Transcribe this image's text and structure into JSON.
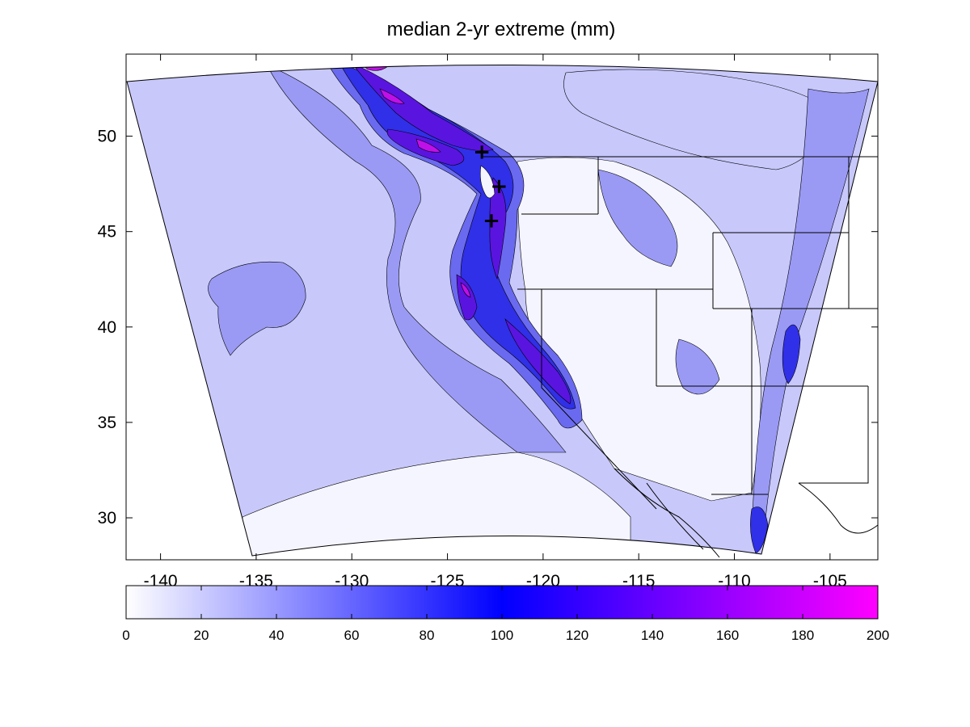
{
  "title": "median 2-yr extreme (mm)",
  "map": {
    "x_ticks": [
      "-140",
      "-135",
      "-130",
      "-125",
      "-120",
      "-115",
      "-110",
      "-105"
    ],
    "y_ticks": [
      "50",
      "45",
      "40",
      "35",
      "30"
    ],
    "x_tick_values": [
      -140,
      -135,
      -130,
      -125,
      -120,
      -115,
      -110,
      -105
    ],
    "y_tick_values": [
      50,
      45,
      40,
      35,
      30
    ],
    "xlim": [
      -141.8,
      -102.5
    ],
    "ylim": [
      27.8,
      54.3
    ],
    "markers": [
      {
        "symbol": "+",
        "lon": -123.2,
        "lat": 49.2
      },
      {
        "symbol": "+",
        "lon": -122.3,
        "lat": 47.4
      },
      {
        "symbol": "+",
        "lon": -122.7,
        "lat": 45.6
      }
    ]
  },
  "colorbar": {
    "ticks": [
      "0",
      "20",
      "40",
      "60",
      "80",
      "100",
      "120",
      "140",
      "160",
      "180",
      "200"
    ],
    "range": [
      0,
      200
    ],
    "colors": [
      "#ffffff",
      "#0000ff",
      "#ff00ff"
    ],
    "color_stops": [
      0,
      100,
      200
    ]
  },
  "colors": {
    "level_0_20": "#f5f5ff",
    "level_20_40": "#c8c8fb",
    "level_40_60": "#9a9af5",
    "level_60_80": "#6a6af0",
    "level_80_100": "#3030e8",
    "level_100_140": "#5a14e0",
    "level_140_200": "#c010e8"
  }
}
